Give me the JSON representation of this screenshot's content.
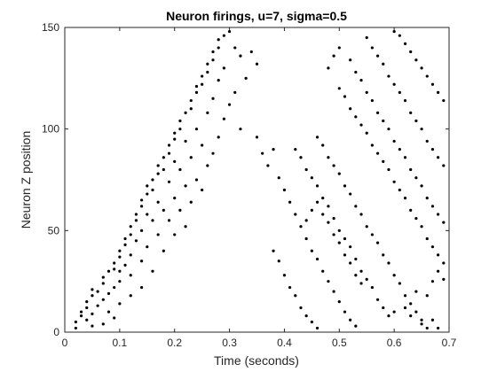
{
  "chart_data": {
    "type": "scatter",
    "title": "Neuron firings, u=7, sigma=0.5",
    "xlabel": "Time (seconds)",
    "ylabel": "Neuron Z position",
    "xlim": [
      0,
      0.7
    ],
    "ylim": [
      0,
      150
    ],
    "xticks": [
      "0",
      "0.1",
      "0.2",
      "0.3",
      "0.4",
      "0.5",
      "0.6",
      "0.7"
    ],
    "yticks": [
      "0",
      "50",
      "100",
      "150"
    ],
    "grid": false,
    "marker_color": "#000000",
    "series": [
      {
        "points": [
          [
            0.02,
            2
          ],
          [
            0.02,
            5
          ],
          [
            0.03,
            8
          ],
          [
            0.03,
            10
          ],
          [
            0.04,
            6
          ],
          [
            0.04,
            12
          ],
          [
            0.04,
            15
          ],
          [
            0.05,
            3
          ],
          [
            0.05,
            9
          ],
          [
            0.05,
            18
          ],
          [
            0.05,
            21
          ],
          [
            0.06,
            13
          ],
          [
            0.06,
            20
          ],
          [
            0.07,
            4
          ],
          [
            0.07,
            16
          ],
          [
            0.07,
            24
          ],
          [
            0.07,
            27
          ],
          [
            0.08,
            10
          ],
          [
            0.08,
            19
          ],
          [
            0.08,
            30
          ],
          [
            0.09,
            7
          ],
          [
            0.09,
            22
          ],
          [
            0.09,
            31
          ],
          [
            0.09,
            34
          ],
          [
            0.1,
            14
          ],
          [
            0.1,
            25
          ],
          [
            0.1,
            30
          ],
          [
            0.1,
            37
          ],
          [
            0.1,
            40
          ],
          [
            0.11,
            33
          ],
          [
            0.11,
            43
          ],
          [
            0.11,
            46
          ],
          [
            0.12,
            18
          ],
          [
            0.12,
            28
          ],
          [
            0.12,
            38
          ],
          [
            0.12,
            48
          ],
          [
            0.12,
            52
          ],
          [
            0.13,
            45
          ],
          [
            0.13,
            55
          ],
          [
            0.13,
            58
          ],
          [
            0.14,
            22
          ],
          [
            0.14,
            35
          ],
          [
            0.14,
            50
          ],
          [
            0.14,
            62
          ],
          [
            0.14,
            65
          ],
          [
            0.15,
            42
          ],
          [
            0.15,
            58
          ],
          [
            0.15,
            68
          ],
          [
            0.15,
            72
          ],
          [
            0.16,
            30
          ],
          [
            0.16,
            55
          ],
          [
            0.16,
            70
          ],
          [
            0.16,
            75
          ],
          [
            0.17,
            48
          ],
          [
            0.17,
            64
          ],
          [
            0.17,
            78
          ],
          [
            0.17,
            82
          ],
          [
            0.18,
            40
          ],
          [
            0.18,
            60
          ],
          [
            0.18,
            80
          ],
          [
            0.18,
            86
          ],
          [
            0.19,
            55
          ],
          [
            0.19,
            74
          ],
          [
            0.19,
            88
          ],
          [
            0.19,
            92
          ],
          [
            0.2,
            48
          ],
          [
            0.2,
            66
          ],
          [
            0.2,
            84
          ],
          [
            0.2,
            95
          ],
          [
            0.2,
            98
          ],
          [
            0.21,
            60
          ],
          [
            0.21,
            80
          ],
          [
            0.21,
            100
          ],
          [
            0.21,
            104
          ],
          [
            0.22,
            52
          ],
          [
            0.22,
            72
          ],
          [
            0.22,
            94
          ],
          [
            0.22,
            108
          ],
          [
            0.23,
            64
          ],
          [
            0.23,
            86
          ],
          [
            0.23,
            110
          ],
          [
            0.23,
            114
          ],
          [
            0.24,
            75
          ],
          [
            0.24,
            100
          ],
          [
            0.24,
            118
          ],
          [
            0.24,
            121
          ],
          [
            0.25,
            70
          ],
          [
            0.25,
            92
          ],
          [
            0.25,
            122
          ],
          [
            0.25,
            126
          ],
          [
            0.26,
            82
          ],
          [
            0.26,
            108
          ],
          [
            0.26,
            128
          ],
          [
            0.26,
            132
          ],
          [
            0.27,
            88
          ],
          [
            0.27,
            115
          ],
          [
            0.27,
            134
          ],
          [
            0.27,
            138
          ],
          [
            0.28,
            96
          ],
          [
            0.28,
            124
          ],
          [
            0.28,
            140
          ],
          [
            0.28,
            144
          ],
          [
            0.29,
            105
          ],
          [
            0.29,
            130
          ],
          [
            0.29,
            146
          ],
          [
            0.3,
            112
          ],
          [
            0.3,
            148
          ],
          [
            0.31,
            118
          ],
          [
            0.31,
            140
          ],
          [
            0.32,
            100
          ],
          [
            0.32,
            136
          ],
          [
            0.33,
            125
          ],
          [
            0.34,
            138
          ],
          [
            0.35,
            132
          ],
          [
            0.35,
            96
          ],
          [
            0.36,
            88
          ],
          [
            0.37,
            82
          ],
          [
            0.38,
            90
          ],
          [
            0.39,
            76
          ],
          [
            0.4,
            70
          ],
          [
            0.41,
            64
          ],
          [
            0.42,
            58
          ],
          [
            0.43,
            52
          ],
          [
            0.44,
            46
          ],
          [
            0.45,
            40
          ],
          [
            0.46,
            36
          ],
          [
            0.47,
            30
          ],
          [
            0.48,
            25
          ],
          [
            0.49,
            20
          ],
          [
            0.5,
            15
          ],
          [
            0.51,
            10
          ],
          [
            0.52,
            6
          ],
          [
            0.53,
            3
          ],
          [
            0.38,
            40
          ],
          [
            0.39,
            35
          ],
          [
            0.4,
            28
          ],
          [
            0.41,
            22
          ],
          [
            0.42,
            18
          ],
          [
            0.43,
            12
          ],
          [
            0.44,
            8
          ],
          [
            0.45,
            5
          ],
          [
            0.46,
            2
          ],
          [
            0.42,
            90
          ],
          [
            0.43,
            86
          ],
          [
            0.44,
            80
          ],
          [
            0.45,
            76
          ],
          [
            0.46,
            72
          ],
          [
            0.47,
            66
          ],
          [
            0.48,
            62
          ],
          [
            0.49,
            56
          ],
          [
            0.5,
            50
          ],
          [
            0.51,
            46
          ],
          [
            0.52,
            42
          ],
          [
            0.53,
            36
          ],
          [
            0.54,
            30
          ],
          [
            0.55,
            26
          ],
          [
            0.56,
            22
          ],
          [
            0.57,
            16
          ],
          [
            0.58,
            12
          ],
          [
            0.59,
            8
          ],
          [
            0.46,
            96
          ],
          [
            0.47,
            92
          ],
          [
            0.48,
            86
          ],
          [
            0.49,
            82
          ],
          [
            0.5,
            78
          ],
          [
            0.51,
            72
          ],
          [
            0.52,
            68
          ],
          [
            0.53,
            62
          ],
          [
            0.54,
            58
          ],
          [
            0.55,
            52
          ],
          [
            0.56,
            48
          ],
          [
            0.57,
            44
          ],
          [
            0.58,
            38
          ],
          [
            0.59,
            34
          ],
          [
            0.6,
            28
          ],
          [
            0.61,
            24
          ],
          [
            0.62,
            18
          ],
          [
            0.63,
            14
          ],
          [
            0.64,
            10
          ],
          [
            0.65,
            6
          ],
          [
            0.66,
            2
          ],
          [
            0.5,
            120
          ],
          [
            0.51,
            116
          ],
          [
            0.52,
            110
          ],
          [
            0.53,
            106
          ],
          [
            0.54,
            102
          ],
          [
            0.55,
            98
          ],
          [
            0.56,
            92
          ],
          [
            0.57,
            88
          ],
          [
            0.58,
            84
          ],
          [
            0.59,
            80
          ],
          [
            0.6,
            74
          ],
          [
            0.61,
            70
          ],
          [
            0.62,
            66
          ],
          [
            0.63,
            60
          ],
          [
            0.64,
            56
          ],
          [
            0.65,
            52
          ],
          [
            0.66,
            46
          ],
          [
            0.67,
            42
          ],
          [
            0.68,
            38
          ],
          [
            0.69,
            34
          ],
          [
            0.48,
            130
          ],
          [
            0.49,
            136
          ],
          [
            0.5,
            140
          ],
          [
            0.52,
            134
          ],
          [
            0.53,
            128
          ],
          [
            0.54,
            124
          ],
          [
            0.55,
            118
          ],
          [
            0.56,
            114
          ],
          [
            0.57,
            108
          ],
          [
            0.58,
            104
          ],
          [
            0.59,
            100
          ],
          [
            0.6,
            94
          ],
          [
            0.61,
            90
          ],
          [
            0.62,
            86
          ],
          [
            0.63,
            80
          ],
          [
            0.64,
            76
          ],
          [
            0.65,
            72
          ],
          [
            0.66,
            66
          ],
          [
            0.67,
            62
          ],
          [
            0.68,
            58
          ],
          [
            0.69,
            54
          ],
          [
            0.55,
            145
          ],
          [
            0.56,
            140
          ],
          [
            0.57,
            136
          ],
          [
            0.58,
            132
          ],
          [
            0.59,
            126
          ],
          [
            0.6,
            122
          ],
          [
            0.61,
            118
          ],
          [
            0.62,
            114
          ],
          [
            0.63,
            108
          ],
          [
            0.64,
            104
          ],
          [
            0.65,
            100
          ],
          [
            0.66,
            94
          ],
          [
            0.67,
            90
          ],
          [
            0.68,
            86
          ],
          [
            0.69,
            82
          ],
          [
            0.6,
            148
          ],
          [
            0.61,
            146
          ],
          [
            0.62,
            142
          ],
          [
            0.63,
            138
          ],
          [
            0.64,
            134
          ],
          [
            0.65,
            130
          ],
          [
            0.66,
            126
          ],
          [
            0.67,
            122
          ],
          [
            0.68,
            118
          ],
          [
            0.69,
            114
          ],
          [
            0.64,
            20
          ],
          [
            0.66,
            18
          ],
          [
            0.67,
            25
          ],
          [
            0.68,
            30
          ],
          [
            0.69,
            26
          ],
          [
            0.6,
            10
          ],
          [
            0.62,
            12
          ],
          [
            0.63,
            8
          ],
          [
            0.65,
            4
          ],
          [
            0.67,
            6
          ],
          [
            0.68,
            2
          ],
          [
            0.44,
            55
          ],
          [
            0.45,
            60
          ],
          [
            0.46,
            64
          ],
          [
            0.47,
            58
          ],
          [
            0.48,
            54
          ],
          [
            0.49,
            48
          ],
          [
            0.5,
            44
          ],
          [
            0.51,
            38
          ],
          [
            0.52,
            34
          ],
          [
            0.53,
            28
          ],
          [
            0.54,
            24
          ]
        ]
      }
    ]
  }
}
